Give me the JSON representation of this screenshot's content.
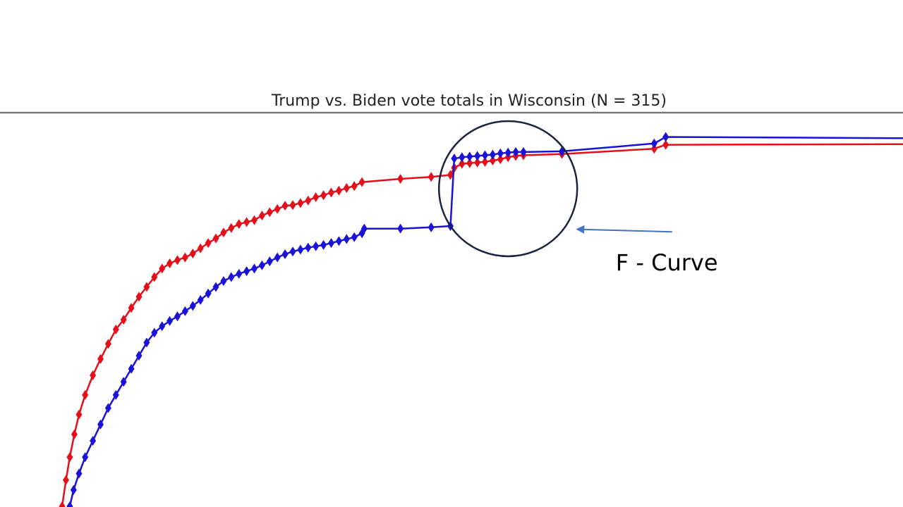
{
  "chart_data": {
    "type": "line",
    "title": "Trump vs. Biden vote totals in Wisconsin (N = 315)",
    "xlabel": "",
    "ylabel": "",
    "grid": false,
    "legend": "none",
    "series": [
      {
        "color": "#e3101c",
        "marker": "diamond",
        "points": [
          [
            0,
            0.0
          ],
          [
            0.5,
            4.0
          ],
          [
            1,
            7.5
          ],
          [
            1.6,
            11.0
          ],
          [
            2.2,
            14.0
          ],
          [
            3,
            17.0
          ],
          [
            4,
            20.0
          ],
          [
            5,
            22.5
          ],
          [
            6,
            24.8
          ],
          [
            7,
            27.0
          ],
          [
            8,
            28.5
          ],
          [
            9,
            30.3
          ],
          [
            10,
            32.0
          ],
          [
            11,
            33.5
          ],
          [
            12,
            35.0
          ],
          [
            13,
            36.3
          ],
          [
            14,
            37.1
          ],
          [
            15,
            37.6
          ],
          [
            16,
            38.0
          ],
          [
            17,
            38.6
          ],
          [
            18,
            39.4
          ],
          [
            19,
            40.2
          ],
          [
            20,
            40.9
          ],
          [
            21,
            41.8
          ],
          [
            22,
            42.5
          ],
          [
            23,
            43.1
          ],
          [
            24,
            43.4
          ],
          [
            25,
            43.7
          ],
          [
            26,
            44.4
          ],
          [
            27,
            44.9
          ],
          [
            28,
            45.4
          ],
          [
            29,
            45.9
          ],
          [
            30,
            46.0
          ],
          [
            31,
            46.3
          ],
          [
            32,
            46.7
          ],
          [
            33,
            47.2
          ],
          [
            34,
            47.5
          ],
          [
            35,
            47.9
          ],
          [
            36,
            48.2
          ],
          [
            37,
            48.6
          ],
          [
            38,
            48.9
          ],
          [
            39,
            49.5
          ],
          [
            44,
            50.0
          ],
          [
            48,
            50.3
          ],
          [
            50.5,
            50.6
          ],
          [
            51,
            51.7
          ],
          [
            52,
            52.3
          ],
          [
            53,
            52.4
          ],
          [
            54,
            52.5
          ],
          [
            55,
            52.6
          ],
          [
            56,
            52.8
          ],
          [
            57,
            53.0
          ],
          [
            58,
            53.3
          ],
          [
            59,
            53.5
          ],
          [
            60,
            53.6
          ],
          [
            65,
            53.8
          ],
          [
            77,
            54.6
          ],
          [
            78.5,
            55.2
          ],
          [
            110,
            55.3
          ]
        ]
      },
      {
        "color": "#1a12d6",
        "marker": "diamond",
        "points": [
          [
            1,
            0.0
          ],
          [
            1.5,
            2.5
          ],
          [
            2.2,
            5.0
          ],
          [
            3,
            7.5
          ],
          [
            4,
            10.0
          ],
          [
            5,
            12.5
          ],
          [
            6,
            15.0
          ],
          [
            7,
            17.0
          ],
          [
            8,
            19.0
          ],
          [
            9,
            21.0
          ],
          [
            10,
            23.0
          ],
          [
            11,
            25.0
          ],
          [
            12,
            26.5
          ],
          [
            13,
            27.5
          ],
          [
            14,
            28.3
          ],
          [
            15,
            29.0
          ],
          [
            16,
            29.8
          ],
          [
            17,
            30.6
          ],
          [
            18,
            31.5
          ],
          [
            19,
            32.5
          ],
          [
            20,
            33.5
          ],
          [
            21,
            34.4
          ],
          [
            22,
            35.0
          ],
          [
            23,
            35.5
          ],
          [
            24,
            35.9
          ],
          [
            25,
            36.3
          ],
          [
            26,
            36.8
          ],
          [
            27,
            37.4
          ],
          [
            28,
            38.0
          ],
          [
            29,
            38.5
          ],
          [
            30,
            38.9
          ],
          [
            31,
            39.2
          ],
          [
            32,
            39.5
          ],
          [
            33,
            39.7
          ],
          [
            34,
            39.9
          ],
          [
            35,
            40.2
          ],
          [
            36,
            40.5
          ],
          [
            37,
            40.8
          ],
          [
            38,
            41.1
          ],
          [
            39,
            41.7
          ],
          [
            39.3,
            42.4
          ],
          [
            44,
            42.4
          ],
          [
            48,
            42.6
          ],
          [
            50.5,
            42.8
          ],
          [
            51,
            53.1
          ],
          [
            52,
            53.3
          ],
          [
            53,
            53.4
          ],
          [
            54,
            53.5
          ],
          [
            55,
            53.6
          ],
          [
            56,
            53.7
          ],
          [
            57,
            53.9
          ],
          [
            58,
            54.0
          ],
          [
            59,
            54.1
          ],
          [
            60,
            54.1
          ],
          [
            65,
            54.2
          ],
          [
            77,
            55.4
          ],
          [
            78.5,
            56.4
          ],
          [
            110,
            56.2
          ]
        ]
      }
    ],
    "annotations": [
      {
        "text": "F - Curve",
        "circle_center": [
          58,
          48.5
        ],
        "arrow_target": [
          67,
          42.3
        ],
        "text_anchor": [
          72,
          36.0
        ]
      }
    ]
  }
}
